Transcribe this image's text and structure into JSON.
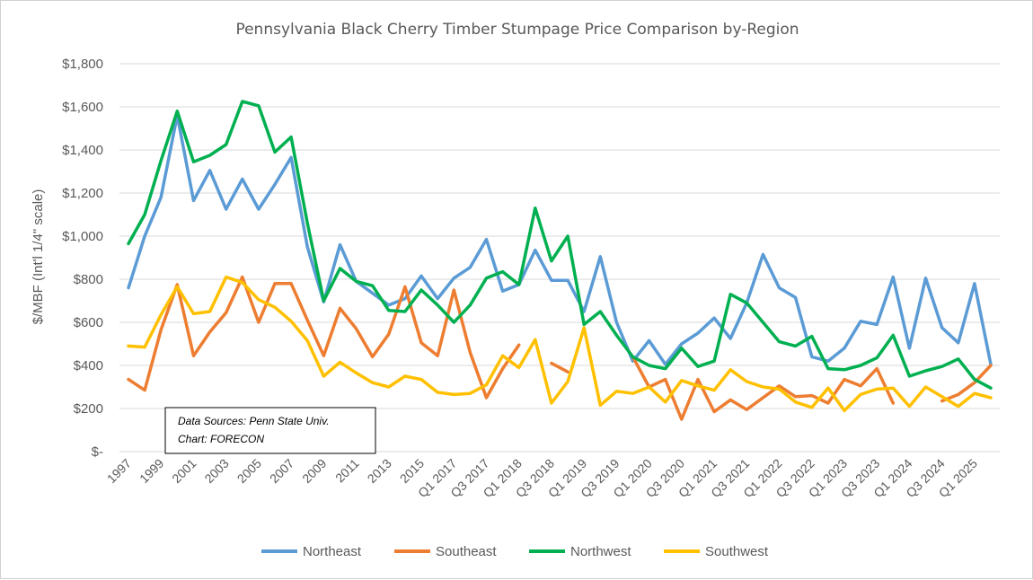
{
  "chart_data": {
    "type": "line",
    "title": "Pennsylvania Black Cherry Timber Stumpage Price Comparison by-Region",
    "xlabel": "",
    "ylabel": "$/MBF (Int'l 1/4\" scale)",
    "ylim": [
      0,
      1800
    ],
    "yticks": [
      0,
      200,
      400,
      600,
      800,
      1000,
      1200,
      1400,
      1600,
      1800
    ],
    "ytick_labels": [
      "$-",
      "$200",
      "$400",
      "$600",
      "$800",
      "$1,000",
      "$1,200",
      "$1,400",
      "$1,600",
      "$1,800"
    ],
    "x": [
      "1997",
      "1998",
      "1999",
      "2000",
      "2001",
      "2002",
      "2003",
      "2004",
      "2005",
      "2006",
      "2007",
      "2008",
      "2009",
      "2010",
      "2011",
      "2012",
      "2013",
      "2014",
      "2015",
      "2016",
      "Q1 2017",
      "Q2 2017",
      "Q3 2017",
      "Q4 2017",
      "Q1 2018",
      "Q2 2018",
      "Q3 2018",
      "Q4 2018",
      "Q1 2019",
      "Q2 2019",
      "Q3 2019",
      "Q4 2019",
      "Q1 2020",
      "Q2 2020",
      "Q3 2020",
      "Q4 2020",
      "Q1 2021",
      "Q2 2021",
      "Q3 2021",
      "Q4 2021",
      "Q1 2022",
      "Q2 2022",
      "Q3 2022",
      "Q4 2022",
      "Q1 2023",
      "Q2 2023",
      "Q3 2023",
      "Q4 2023",
      "Q1 2024",
      "Q2 2024",
      "Q3 2024",
      "Q4 2024",
      "Q1 2025",
      "Q2 2025"
    ],
    "xtick_labels": [
      "1997",
      "1999",
      "2001",
      "2003",
      "2005",
      "2007",
      "2009",
      "2011",
      "2013",
      "2015",
      "Q1 2017",
      "Q3 2017",
      "Q1 2018",
      "Q3 2018",
      "Q1 2019",
      "Q3 2019",
      "Q1 2020",
      "Q3 2020",
      "Q1 2021",
      "Q3 2021",
      "Q1 2022",
      "Q3 2022",
      "Q1 2023",
      "Q3 2023",
      "Q1 2024",
      "Q3 2024",
      "Q1 2025"
    ],
    "grid": true,
    "legend": "bottom",
    "series": [
      {
        "name": "Northeast",
        "color": "#5b9bd5",
        "values": [
          760,
          1000,
          1180,
          1560,
          1165,
          1305,
          1125,
          1265,
          1125,
          1240,
          1365,
          950,
          695,
          960,
          790,
          735,
          680,
          710,
          815,
          710,
          805,
          855,
          985,
          745,
          775,
          935,
          795,
          795,
          650,
          905,
          600,
          420,
          515,
          405,
          500,
          550,
          620,
          525,
          690,
          915,
          760,
          715,
          440,
          420,
          480,
          605,
          590,
          810,
          480,
          805,
          575,
          505,
          780,
          405
        ]
      },
      {
        "name": "Southeast",
        "color": "#ed7d31",
        "values": [
          335,
          285,
          565,
          775,
          445,
          555,
          645,
          810,
          600,
          780,
          780,
          610,
          445,
          665,
          570,
          440,
          545,
          765,
          505,
          445,
          750,
          460,
          250,
          385,
          495,
          null,
          410,
          370,
          null,
          null,
          null,
          440,
          300,
          335,
          150,
          335,
          185,
          240,
          195,
          250,
          305,
          255,
          260,
          225,
          335,
          305,
          385,
          225,
          null,
          null,
          235,
          265,
          320,
          400
        ]
      },
      {
        "name": "Northwest",
        "color": "#00b050",
        "values": [
          965,
          1100,
          1350,
          1580,
          1345,
          1375,
          1425,
          1625,
          1605,
          1390,
          1460,
          1060,
          700,
          850,
          790,
          770,
          655,
          650,
          750,
          680,
          600,
          680,
          805,
          835,
          775,
          1130,
          885,
          1000,
          590,
          650,
          540,
          440,
          400,
          385,
          480,
          395,
          420,
          730,
          690,
          600,
          510,
          490,
          535,
          385,
          380,
          400,
          435,
          540,
          350,
          375,
          395,
          430,
          335,
          295
        ]
      },
      {
        "name": "Southwest",
        "color": "#ffc000",
        "values": [
          490,
          485,
          635,
          765,
          640,
          650,
          810,
          785,
          705,
          670,
          605,
          515,
          350,
          415,
          365,
          320,
          300,
          350,
          335,
          275,
          265,
          270,
          310,
          445,
          390,
          520,
          225,
          325,
          575,
          215,
          280,
          270,
          300,
          230,
          330,
          305,
          285,
          380,
          325,
          300,
          290,
          230,
          205,
          295,
          190,
          265,
          290,
          295,
          210,
          300,
          255,
          210,
          270,
          250
        ]
      }
    ],
    "annotation": {
      "line1": "Data Sources: Penn State Univ.",
      "line2": "Chart: FORECON"
    }
  }
}
